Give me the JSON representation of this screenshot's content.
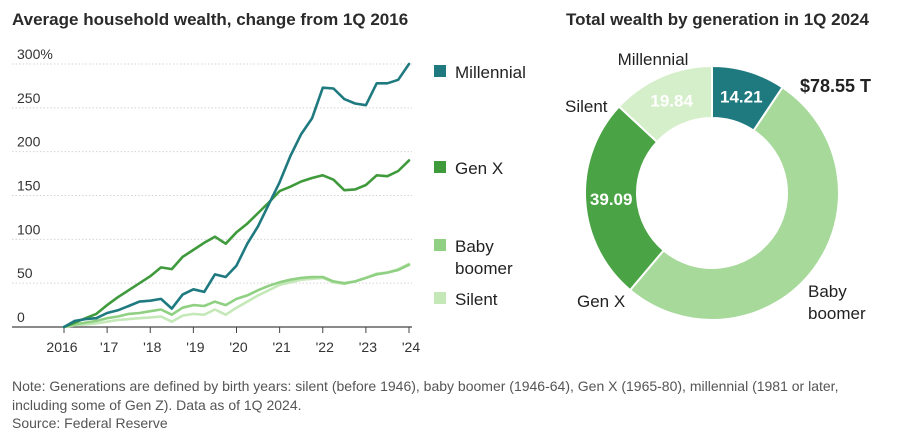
{
  "chart_data": [
    {
      "type": "line",
      "title": "Average household wealth, change from 1Q 2016",
      "xlabel": "",
      "ylabel": "",
      "ylim": [
        0,
        300
      ],
      "yticks": [
        0,
        50,
        100,
        150,
        200,
        250,
        300
      ],
      "ytick_labels": [
        "0",
        "50",
        "100",
        "150",
        "200",
        "250",
        "300%"
      ],
      "xlim": [
        2016,
        2024.25
      ],
      "xticks": [
        2016,
        2017,
        2018,
        2019,
        2020,
        2021,
        2022,
        2023,
        2024
      ],
      "xtick_labels": [
        "2016",
        "'17",
        "'18",
        "'19",
        "'20",
        "'21",
        "'22",
        "'23",
        "'24"
      ],
      "series": [
        {
          "name": "Millennial",
          "label": "Millennial",
          "color": "#1f7a80",
          "points": [
            [
              2016,
              0
            ],
            [
              2016.25,
              7
            ],
            [
              2016.5,
              9
            ],
            [
              2016.75,
              10
            ],
            [
              2017,
              16
            ],
            [
              2017.25,
              19
            ],
            [
              2017.5,
              24
            ],
            [
              2017.75,
              29
            ],
            [
              2018,
              30
            ],
            [
              2018.25,
              32
            ],
            [
              2018.5,
              21
            ],
            [
              2018.75,
              37
            ],
            [
              2019,
              43
            ],
            [
              2019.25,
              40
            ],
            [
              2019.5,
              60
            ],
            [
              2019.75,
              57
            ],
            [
              2020,
              70
            ],
            [
              2020.25,
              95
            ],
            [
              2020.5,
              115
            ],
            [
              2020.75,
              140
            ],
            [
              2021,
              165
            ],
            [
              2021.25,
              195
            ],
            [
              2021.5,
              220
            ],
            [
              2021.75,
              238
            ],
            [
              2022,
              273
            ],
            [
              2022.25,
              272
            ],
            [
              2022.5,
              260
            ],
            [
              2022.75,
              255
            ],
            [
              2023,
              253
            ],
            [
              2023.25,
              278
            ],
            [
              2023.5,
              278
            ],
            [
              2023.75,
              282
            ],
            [
              2024,
              300
            ]
          ]
        },
        {
          "name": "Gen X",
          "label": "Gen X",
          "color": "#3f9a3c",
          "points": [
            [
              2016,
              0
            ],
            [
              2016.25,
              5
            ],
            [
              2016.5,
              10
            ],
            [
              2016.75,
              15
            ],
            [
              2017,
              25
            ],
            [
              2017.25,
              34
            ],
            [
              2017.5,
              42
            ],
            [
              2017.75,
              50
            ],
            [
              2018,
              58
            ],
            [
              2018.25,
              68
            ],
            [
              2018.5,
              66
            ],
            [
              2018.75,
              80
            ],
            [
              2019,
              88
            ],
            [
              2019.25,
              96
            ],
            [
              2019.5,
              103
            ],
            [
              2019.75,
              95
            ],
            [
              2020,
              108
            ],
            [
              2020.25,
              118
            ],
            [
              2020.5,
              130
            ],
            [
              2020.75,
              142
            ],
            [
              2021,
              155
            ],
            [
              2021.25,
              160
            ],
            [
              2021.5,
              166
            ],
            [
              2021.75,
              170
            ],
            [
              2022,
              173
            ],
            [
              2022.25,
              168
            ],
            [
              2022.5,
              156
            ],
            [
              2022.75,
              157
            ],
            [
              2023,
              162
            ],
            [
              2023.25,
              173
            ],
            [
              2023.5,
              172
            ],
            [
              2023.75,
              178
            ],
            [
              2024,
              190
            ]
          ]
        },
        {
          "name": "Baby boomer",
          "label": [
            "Baby",
            "boomer"
          ],
          "color": "#8fd082",
          "points": [
            [
              2016,
              0
            ],
            [
              2016.25,
              3
            ],
            [
              2016.5,
              5
            ],
            [
              2016.75,
              7
            ],
            [
              2017,
              10
            ],
            [
              2017.25,
              12
            ],
            [
              2017.5,
              15
            ],
            [
              2017.75,
              16
            ],
            [
              2018,
              18
            ],
            [
              2018.25,
              20
            ],
            [
              2018.5,
              14
            ],
            [
              2018.75,
              22
            ],
            [
              2019,
              25
            ],
            [
              2019.25,
              24
            ],
            [
              2019.5,
              29
            ],
            [
              2019.75,
              25
            ],
            [
              2020,
              32
            ],
            [
              2020.25,
              36
            ],
            [
              2020.5,
              42
            ],
            [
              2020.75,
              47
            ],
            [
              2021,
              51
            ],
            [
              2021.25,
              54
            ],
            [
              2021.5,
              56
            ],
            [
              2021.75,
              57
            ],
            [
              2022,
              57
            ],
            [
              2022.25,
              52
            ],
            [
              2022.5,
              50
            ],
            [
              2022.75,
              52
            ],
            [
              2023,
              56
            ],
            [
              2023.25,
              60
            ],
            [
              2023.5,
              62
            ],
            [
              2023.75,
              65
            ],
            [
              2024,
              71
            ]
          ]
        },
        {
          "name": "Silent",
          "label": "Silent",
          "color": "#c4e8b8",
          "points": [
            [
              2016,
              0
            ],
            [
              2016.25,
              2
            ],
            [
              2016.5,
              3
            ],
            [
              2016.75,
              4
            ],
            [
              2017,
              6
            ],
            [
              2017.25,
              8
            ],
            [
              2017.5,
              9
            ],
            [
              2017.75,
              10
            ],
            [
              2018,
              11
            ],
            [
              2018.25,
              12
            ],
            [
              2018.5,
              6
            ],
            [
              2018.75,
              13
            ],
            [
              2019,
              15
            ],
            [
              2019.25,
              14
            ],
            [
              2019.5,
              20
            ],
            [
              2019.75,
              14
            ],
            [
              2020,
              22
            ],
            [
              2020.25,
              29
            ],
            [
              2020.5,
              36
            ],
            [
              2020.75,
              42
            ],
            [
              2021,
              48
            ],
            [
              2021.25,
              51
            ],
            [
              2021.5,
              54
            ],
            [
              2021.75,
              55
            ],
            [
              2022,
              56
            ],
            [
              2022.25,
              51
            ],
            [
              2022.5,
              49
            ],
            [
              2022.75,
              52
            ],
            [
              2023,
              56
            ],
            [
              2023.25,
              61
            ],
            [
              2023.5,
              62
            ],
            [
              2023.75,
              66
            ],
            [
              2024,
              72
            ]
          ]
        }
      ]
    },
    {
      "type": "pie",
      "title": "Total wealth by generation in 1Q 2024",
      "total_label": "$78.55 T",
      "slices": [
        {
          "name": "Millennial",
          "label": "Millennial",
          "value": 14.21,
          "value_label": "14.21",
          "color": "#1f7a80",
          "text_color": "#ffffff"
        },
        {
          "name": "Baby boomer",
          "label": "Baby boomer",
          "value": 78.55,
          "value_label": "",
          "color": "#a6d99a",
          "text_color": "#ffffff"
        },
        {
          "name": "Gen X",
          "label": "Gen X",
          "value": 39.09,
          "value_label": "39.09",
          "color": "#4aa344",
          "text_color": "#ffffff"
        },
        {
          "name": "Silent",
          "label": "Silent",
          "value": 19.84,
          "value_label": "19.84",
          "color": "#d6efcb",
          "text_color": "#ffffff"
        }
      ]
    }
  ],
  "note": "Note: Generations are defined by birth years: silent (before 1946), baby boomer (1946-64), Gen X (1965-80), millennial (1981 or later, including some of Gen Z). Data as of 1Q 2024.",
  "source": "Source: Federal Reserve"
}
